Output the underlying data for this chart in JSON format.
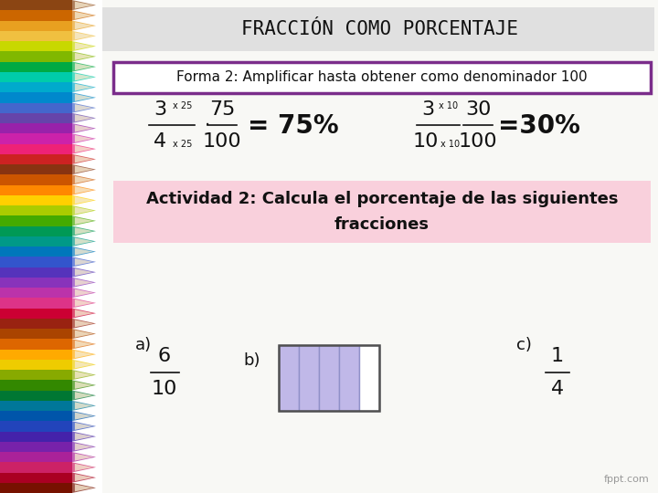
{
  "title": "FRACCIÓN COMO PORCENTAJE",
  "title_bg": "#e0e0e0",
  "subtitle_box_text": "Forma 2: Amplificar hasta obtener como denominador 100",
  "subtitle_box_border": "#7B2D8B",
  "subtitle_box_bg": "#ffffff",
  "activity_box_text1": "Actividad 2: Calcula el porcentaje de las siguientes",
  "activity_box_text2": "fracciones",
  "activity_box_bg": "#f9d0dc",
  "main_bg": "#ffffff",
  "content_bg": "#f8f8f5",
  "pencil_colors": [
    "#8B4513",
    "#cc6600",
    "#e8a020",
    "#f0c040",
    "#c8d800",
    "#80b800",
    "#00aa44",
    "#00ccaa",
    "#00aacc",
    "#0088cc",
    "#4466cc",
    "#6644aa",
    "#9922aa",
    "#cc22aa",
    "#ee2277",
    "#cc2222",
    "#883311",
    "#cc5500",
    "#ff8800",
    "#ffd000",
    "#aacc00",
    "#44aa00",
    "#009955",
    "#009988",
    "#0077bb",
    "#3355cc",
    "#5533bb",
    "#8833bb",
    "#bb33aa",
    "#dd3388",
    "#cc0033",
    "#992211",
    "#aa4400",
    "#dd6600",
    "#ffaa00",
    "#eecc00",
    "#88aa00",
    "#338800",
    "#007733",
    "#007799",
    "#0055aa",
    "#2244bb",
    "#4422aa",
    "#7722aa",
    "#aa2299",
    "#cc2266",
    "#aa0022",
    "#771100"
  ],
  "fraction1_num": "3",
  "fraction1_den": "4",
  "mult1_top": "x 25",
  "mult1_bot": "x 25",
  "result1_num": "75",
  "result1_den": "100",
  "result1_pct": "= 75%",
  "fraction2_num": "3",
  "fraction2_den": "10",
  "mult2_top": "x 10",
  "mult2_bot": "x 10",
  "result2_num": "30",
  "result2_den": "100",
  "result2_pct": "=30%",
  "a_label": "a)",
  "a_num": "6",
  "a_den": "10",
  "b_label": "b)",
  "c_label": "c)",
  "c_num": "1",
  "c_den": "4",
  "grid_color": "#9090c8",
  "grid_fill": "#c0b8e8",
  "grid_n_cols": 5,
  "grid_n_filled": 4,
  "fppt_text": "fppt.com"
}
